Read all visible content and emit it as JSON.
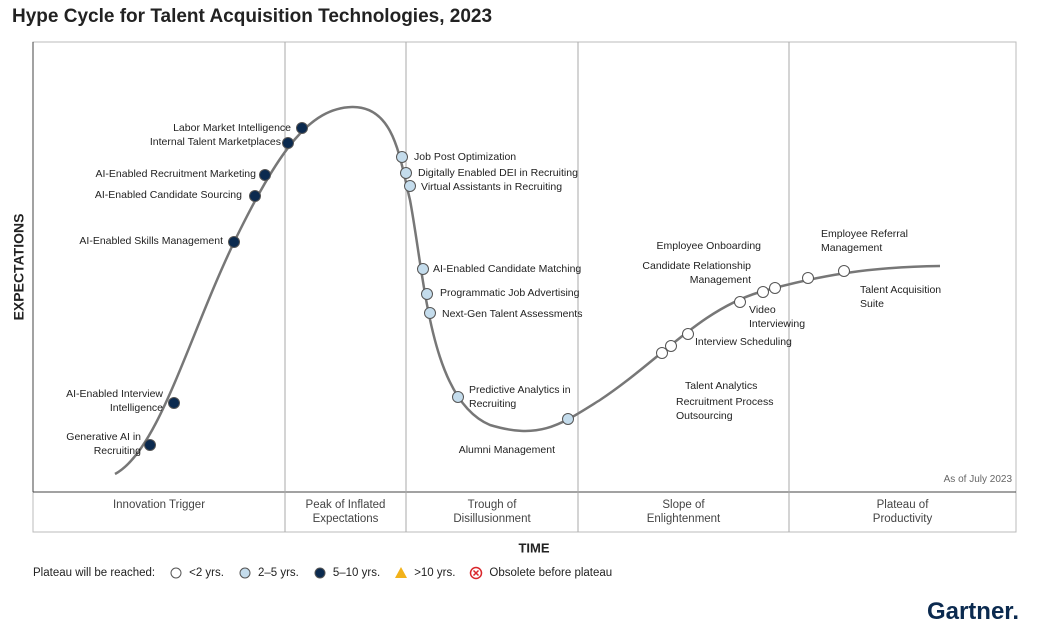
{
  "title": "Hype Cycle for Talent Acquisition Technologies, 2023",
  "y_axis_label": "EXPECTATIONS",
  "x_axis_label": "TIME",
  "as_of": "As of July 2023",
  "phases": [
    "Innovation Trigger",
    "Peak of Inflated Expectations",
    "Trough of Disillusionment",
    "Slope of Enlightenment",
    "Plateau of Productivity"
  ],
  "legend": {
    "label": "Plateau will be reached:",
    "items": [
      {
        "label": "<2 yrs.",
        "color": "#ffffff",
        "technologies": [
          "Employee Onboarding",
          "Candidate Relationship Management",
          "Employee Referral Management",
          "Talent Acquisition Suite",
          "Video Interviewing",
          "Interview Scheduling",
          "Talent Analytics",
          "Recruitment Process Outsourcing"
        ]
      },
      {
        "label": "2–5 yrs.",
        "color": "#c4dcec",
        "technologies": [
          "Job Post Optimization",
          "Digitally Enabled DEI in Recruiting",
          "Virtual Assistants in Recruiting",
          "AI-Enabled Candidate Matching",
          "Programmatic Job Advertising",
          "Next-Gen Talent Assessments",
          "Predictive Analytics in Recruiting",
          "Alumni Management"
        ]
      },
      {
        "label": "5–10 yrs.",
        "color": "#0b2a4f",
        "technologies": [
          "Labor Market Intelligence",
          "Internal Talent Marketplaces",
          "AI-Enabled Recruitment Marketing",
          "AI-Enabled Candidate Sourcing",
          "AI-Enabled Skills Management",
          "AI-Enabled Interview Intelligence",
          "Generative AI in Recruiting"
        ]
      },
      {
        "label": ">10 yrs.",
        "color": "#f2b21a",
        "technologies": []
      },
      {
        "label": "Obsolete before plateau",
        "color": "#d9262b",
        "technologies": []
      }
    ]
  },
  "brand": "Gartner."
}
